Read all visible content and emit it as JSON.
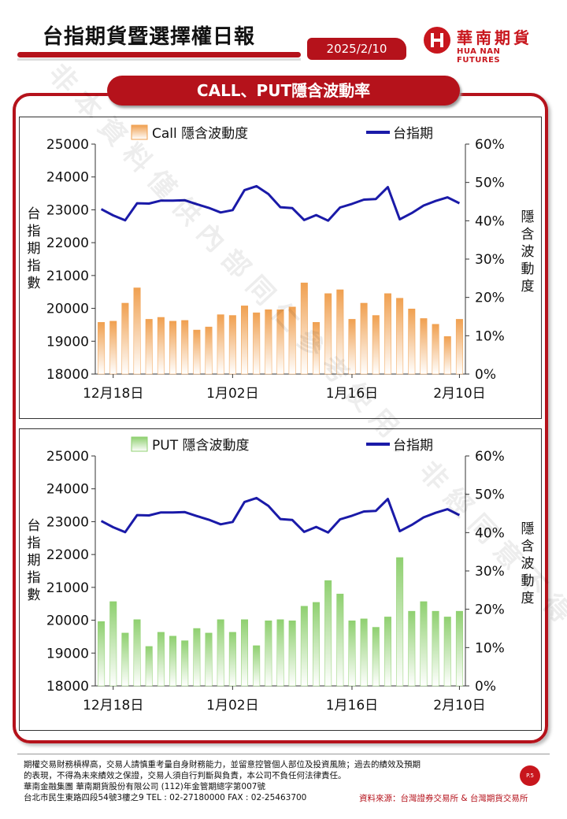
{
  "header": {
    "title": "台指期貨暨選擇權日報",
    "date": "2025/2/10",
    "logo_name": "華南期貨",
    "logo_en": "HUA NAN FUTURES"
  },
  "section_title": "CALL、PUT隱含波動率",
  "colors": {
    "brand_red": "#b5121b",
    "call_bar": "#f0a050",
    "put_bar": "#8fd070",
    "index_line": "#1a1aa8"
  },
  "chart_data": [
    {
      "type": "bar",
      "legend_bar": "Call 隱含波動度",
      "legend_line": "台指期",
      "ylabel_left": "台指期指數",
      "ylabel_right": "隱含波動度",
      "x_ticks": [
        "12月18日",
        "1月02日",
        "1月16日",
        "2月10日"
      ],
      "ylim_left": [
        18000,
        25000
      ],
      "ylim_right": [
        0,
        60
      ],
      "yticks_left": [
        "25000",
        "24000",
        "23000",
        "22000",
        "21000",
        "20000",
        "19000",
        "18000"
      ],
      "yticks_right": [
        "60%",
        "50%",
        "40%",
        "30%",
        "20%",
        "10%",
        "0%"
      ],
      "series": [
        {
          "name": "Call 隱含波動度",
          "axis": "right",
          "values": [
            13.5,
            13.8,
            18.5,
            22.5,
            14.3,
            14.8,
            13.8,
            14.0,
            11.5,
            12.3,
            15.5,
            15.3,
            17.8,
            16.0,
            16.8,
            16.8,
            17.5,
            23.8,
            13.5,
            21.0,
            22.0,
            14.3,
            18.5,
            15.3,
            21.0,
            19.8,
            17.0,
            14.5,
            13.0,
            9.8,
            14.3
          ]
        },
        {
          "name": "台指期",
          "axis": "left",
          "values": [
            23020,
            22830,
            22680,
            23200,
            23190,
            23280,
            23280,
            23290,
            23170,
            23060,
            22920,
            22990,
            23600,
            23720,
            23480,
            23080,
            23050,
            22690,
            22840,
            22670,
            23070,
            23180,
            23310,
            23330,
            23690,
            22710,
            22900,
            23130,
            23270,
            23380,
            23200
          ]
        }
      ]
    },
    {
      "type": "bar",
      "legend_bar": "PUT 隱含波動度",
      "legend_line": "台指期",
      "ylabel_left": "台指期指數",
      "ylabel_right": "隱含波動度",
      "x_ticks": [
        "12月18日",
        "1月02日",
        "1月16日",
        "2月10日"
      ],
      "ylim_left": [
        18000,
        25000
      ],
      "ylim_right": [
        0,
        60
      ],
      "yticks_left": [
        "25000",
        "24000",
        "23000",
        "22000",
        "21000",
        "20000",
        "19000",
        "18000"
      ],
      "yticks_right": [
        "60%",
        "50%",
        "40%",
        "30%",
        "20%",
        "10%",
        "0%"
      ],
      "series": [
        {
          "name": "PUT 隱含波動度",
          "axis": "right",
          "values": [
            16.8,
            22.0,
            13.8,
            17.3,
            10.3,
            14.0,
            13.0,
            11.8,
            15.0,
            13.8,
            17.3,
            14.0,
            17.3,
            10.5,
            17.0,
            17.3,
            17.0,
            20.8,
            21.8,
            27.5,
            24.0,
            17.0,
            17.5,
            15.3,
            18.0,
            33.5,
            19.5,
            22.0,
            19.5,
            18.0,
            19.5
          ]
        },
        {
          "name": "台指期",
          "axis": "left",
          "values": [
            23020,
            22830,
            22680,
            23200,
            23190,
            23280,
            23280,
            23290,
            23170,
            23060,
            22920,
            22990,
            23600,
            23720,
            23480,
            23080,
            23050,
            22690,
            22840,
            22670,
            23070,
            23180,
            23310,
            23330,
            23690,
            22710,
            22900,
            23130,
            23270,
            23380,
            23200
          ]
        }
      ]
    }
  ],
  "watermark": "非本資料僅供內部同仁參考使用，非經同意不得轉載。",
  "footer": {
    "disclaimer_1": "期權交易財務槓桿高，交易人請慎重考量自身財務能力，並留意控管個人部位及投資風險；過去的績效及預期",
    "disclaimer_2": "的表現，不得為未來績效之保證，交易人須自行判斷與負責，本公司不負任何法律責任。",
    "company": "華南金融集團 華南期貨股份有限公司 (112)年金管期總字第007號",
    "address": "台北市民生東路四段54號3樓之9  TEL : 02-27180000  FAX : 02-25463700",
    "page": "P.5",
    "source": "資料來源：台灣證券交易所 & 台灣期貨交易所"
  }
}
